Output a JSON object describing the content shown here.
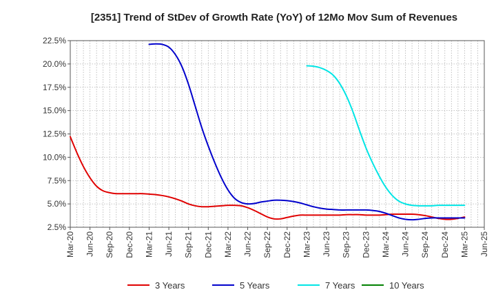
{
  "chart_data": {
    "type": "line",
    "title": "[2351]  Trend of StDev of Growth Rate (YoY) of 12Mo Mov Sum of Revenues",
    "xlabel": "",
    "ylabel": "",
    "ylim": [
      2.5,
      22.5
    ],
    "y_ticks": [
      "2.5%",
      "5.0%",
      "7.5%",
      "10.0%",
      "12.5%",
      "15.0%",
      "17.5%",
      "20.0%",
      "22.5%"
    ],
    "y_tick_values": [
      2.5,
      5.0,
      7.5,
      10.0,
      12.5,
      15.0,
      17.5,
      20.0,
      22.5
    ],
    "x_ticks": [
      "Mar-20",
      "Jun-20",
      "Sep-20",
      "Dec-20",
      "Mar-21",
      "Jun-21",
      "Sep-21",
      "Dec-21",
      "Mar-22",
      "Jun-22",
      "Sep-22",
      "Dec-22",
      "Mar-23",
      "Jun-23",
      "Sep-23",
      "Dec-23",
      "Mar-24",
      "Jun-24",
      "Sep-24",
      "Dec-24",
      "Mar-25",
      "Jun-25"
    ],
    "grid": true,
    "legend_position": "bottom",
    "series": [
      {
        "name": "3 Years",
        "color": "#e00000",
        "x": [
          0,
          1,
          2,
          3,
          4,
          5,
          6,
          7,
          8,
          9,
          10,
          11,
          12,
          13,
          14,
          15,
          16,
          17,
          18,
          19,
          20,
          21,
          22,
          23,
          24,
          25,
          26,
          27,
          28,
          29,
          30,
          31,
          32,
          33,
          34,
          35,
          36,
          37,
          38,
          39,
          40,
          41,
          42,
          43,
          44,
          45,
          46,
          47,
          48,
          49,
          50,
          51,
          52,
          53,
          54,
          55,
          56,
          57,
          58,
          59,
          60
        ],
        "values": [
          12.2,
          10.5,
          9.0,
          7.8,
          6.9,
          6.4,
          6.2,
          6.1,
          6.1,
          6.1,
          6.1,
          6.1,
          6.05,
          6.0,
          5.9,
          5.75,
          5.55,
          5.3,
          5.0,
          4.8,
          4.7,
          4.7,
          4.75,
          4.8,
          4.85,
          4.85,
          4.8,
          4.6,
          4.3,
          3.95,
          3.6,
          3.4,
          3.4,
          3.55,
          3.7,
          3.8,
          3.8,
          3.8,
          3.8,
          3.8,
          3.8,
          3.8,
          3.85,
          3.85,
          3.85,
          3.8,
          3.8,
          3.8,
          3.85,
          3.9,
          3.9,
          3.9,
          3.9,
          3.85,
          3.75,
          3.6,
          3.45,
          3.35,
          3.35,
          3.45,
          3.6
        ]
      },
      {
        "name": "5 Years",
        "color": "#0000cc",
        "x": [
          12,
          13,
          14,
          15,
          16,
          17,
          18,
          19,
          20,
          21,
          22,
          23,
          24,
          25,
          26,
          27,
          28,
          29,
          30,
          31,
          32,
          33,
          34,
          35,
          36,
          37,
          38,
          39,
          40,
          41,
          42,
          43,
          44,
          45,
          46,
          47,
          48,
          49,
          50,
          51,
          52,
          53,
          54,
          55,
          56,
          57,
          58,
          59,
          60
        ],
        "values": [
          22.1,
          22.15,
          22.1,
          21.8,
          21.0,
          19.7,
          17.8,
          15.5,
          13.2,
          11.2,
          9.4,
          7.8,
          6.5,
          5.6,
          5.15,
          5.0,
          5.05,
          5.2,
          5.3,
          5.4,
          5.4,
          5.35,
          5.25,
          5.1,
          4.9,
          4.7,
          4.55,
          4.45,
          4.4,
          4.35,
          4.35,
          4.35,
          4.35,
          4.35,
          4.3,
          4.2,
          4.0,
          3.75,
          3.5,
          3.35,
          3.3,
          3.35,
          3.45,
          3.5,
          3.5,
          3.5,
          3.5,
          3.5,
          3.5
        ]
      },
      {
        "name": "7 Years",
        "color": "#00e5e5",
        "x": [
          36,
          37,
          38,
          39,
          40,
          41,
          42,
          43,
          44,
          45,
          46,
          47,
          48,
          49,
          50,
          51,
          52,
          53,
          54,
          55,
          56,
          57,
          58,
          59,
          60
        ],
        "values": [
          19.8,
          19.75,
          19.6,
          19.3,
          18.8,
          17.9,
          16.6,
          14.9,
          12.9,
          11.0,
          9.4,
          8.0,
          6.8,
          5.9,
          5.3,
          5.0,
          4.85,
          4.8,
          4.8,
          4.8,
          4.85,
          4.85,
          4.85,
          4.85,
          4.85
        ]
      },
      {
        "name": "10 Years",
        "color": "#008000",
        "x": [],
        "values": []
      }
    ]
  }
}
